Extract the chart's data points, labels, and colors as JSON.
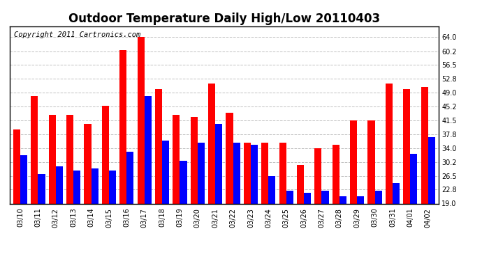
{
  "title": "Outdoor Temperature Daily High/Low 20110403",
  "copyright": "Copyright 2011 Cartronics.com",
  "categories": [
    "03/10",
    "03/11",
    "03/12",
    "03/13",
    "03/14",
    "03/15",
    "03/16",
    "03/17",
    "03/18",
    "03/19",
    "03/20",
    "03/21",
    "03/22",
    "03/23",
    "03/24",
    "03/25",
    "03/26",
    "03/27",
    "03/28",
    "03/29",
    "03/30",
    "03/31",
    "04/01",
    "04/02"
  ],
  "highs": [
    39.0,
    48.0,
    43.0,
    43.0,
    40.5,
    45.5,
    60.5,
    64.0,
    50.0,
    43.0,
    42.5,
    51.5,
    43.5,
    35.5,
    35.5,
    35.5,
    29.5,
    34.0,
    35.0,
    41.5,
    41.5,
    51.5,
    50.0,
    50.5
  ],
  "lows": [
    32.0,
    27.0,
    29.0,
    28.0,
    28.5,
    28.0,
    33.0,
    48.0,
    36.0,
    30.5,
    35.5,
    40.5,
    35.5,
    35.0,
    26.5,
    22.5,
    22.0,
    22.5,
    21.0,
    21.0,
    22.5,
    24.5,
    32.5,
    37.0
  ],
  "high_color": "#ff0000",
  "low_color": "#0000ff",
  "bg_color": "#ffffff",
  "grid_color": "#c0c0c0",
  "bar_width": 0.4,
  "ybase": 19.0,
  "ylim_min": 19.0,
  "ylim_max": 67.0,
  "yticks": [
    19.0,
    22.8,
    26.5,
    30.2,
    34.0,
    37.8,
    41.5,
    45.2,
    49.0,
    52.8,
    56.5,
    60.2,
    64.0
  ],
  "ytick_labels": [
    "19.0",
    "22.8",
    "26.5",
    "30.2",
    "34.0",
    "37.8",
    "41.5",
    "45.2",
    "49.0",
    "52.8",
    "56.5",
    "60.2",
    "64.0"
  ],
  "title_fontsize": 12,
  "tick_fontsize": 7,
  "copyright_fontsize": 7.5
}
